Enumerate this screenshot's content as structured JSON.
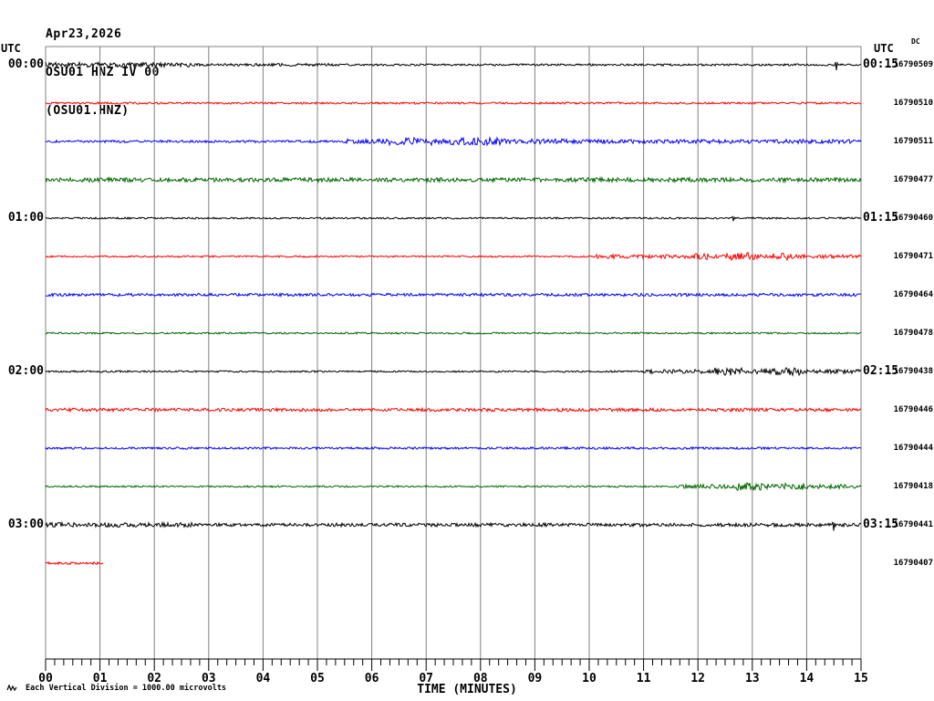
{
  "title": {
    "date": "Apr23,2026",
    "station": "OSU01 HNZ IV 00",
    "channel": "(OSU01.HNZ)"
  },
  "header": {
    "utc_left": "UTC",
    "utc_right": "UTC",
    "dc": "DC"
  },
  "x_axis": {
    "ticks": [
      "00",
      "01",
      "02",
      "03",
      "04",
      "05",
      "06",
      "07",
      "08",
      "09",
      "10",
      "11",
      "12",
      "13",
      "14",
      "15"
    ],
    "label": "TIME (MINUTES)"
  },
  "footnote": "Each Vertical Division = 1000.00 microvolts",
  "chart_data": {
    "type": "line",
    "subtype": "helicorder-seismogram",
    "title": "OSU01 HNZ IV 00 (OSU01.HNZ) Apr23,2026",
    "xlabel": "TIME (MINUTES)",
    "x_range": [
      0,
      15
    ],
    "minutes_per_row": 15,
    "grid": true,
    "grid_color": "#808080",
    "axis_color": "#000000",
    "vertical_division_microvolts": 1000.0,
    "trace_colors": [
      "#000000",
      "#ff0000",
      "#0000ff",
      "#006600"
    ],
    "rows": [
      {
        "left_label": "00:00",
        "right_label": "00:15",
        "dc": "16790509",
        "color": "#000000",
        "segments": [
          {
            "t0": 0,
            "t1": 1.1,
            "amp": 2.8
          },
          {
            "t0": 1.1,
            "t1": 2.7,
            "amp": 2.4
          },
          {
            "t0": 2.7,
            "t1": 5.4,
            "amp": 1.5
          },
          {
            "t0": 5.4,
            "t1": 15,
            "amp": 1.1
          }
        ],
        "spikes": [
          {
            "t": 14.55,
            "amp": 6
          }
        ]
      },
      {
        "dc": "16790510",
        "color": "#ff0000",
        "segments": [
          {
            "t0": 0,
            "t1": 15,
            "amp": 1.1
          }
        ],
        "spikes": []
      },
      {
        "dc": "16790511",
        "color": "#0000ff",
        "segments": [
          {
            "t0": 0,
            "t1": 5.5,
            "amp": 1.3
          },
          {
            "t0": 5.5,
            "t1": 6.2,
            "amp": 2.6
          },
          {
            "t0": 6.2,
            "t1": 7.1,
            "amp": 4
          },
          {
            "t0": 7.1,
            "t1": 7.4,
            "amp": 2.6
          },
          {
            "t0": 7.4,
            "t1": 8.4,
            "amp": 4
          },
          {
            "t0": 8.4,
            "t1": 9.6,
            "amp": 2.8
          },
          {
            "t0": 9.6,
            "t1": 15,
            "amp": 2.2
          }
        ],
        "spikes": []
      },
      {
        "dc": "16790477",
        "color": "#006600",
        "segments": [
          {
            "t0": 0,
            "t1": 15,
            "amp": 2.3
          }
        ],
        "spikes": []
      },
      {
        "left_label": "01:00",
        "right_label": "01:15",
        "dc": "16790460",
        "color": "#000000",
        "segments": [
          {
            "t0": 0,
            "t1": 15,
            "amp": 0.9
          }
        ],
        "spikes": [
          {
            "t": 12.65,
            "amp": 3.2
          }
        ]
      },
      {
        "dc": "16790471",
        "color": "#ff0000",
        "segments": [
          {
            "t0": 0,
            "t1": 10.1,
            "amp": 0.9
          },
          {
            "t0": 10.1,
            "t1": 11.9,
            "amp": 2.2
          },
          {
            "t0": 11.9,
            "t1": 12.25,
            "amp": 3.6
          },
          {
            "t0": 12.25,
            "t1": 12.5,
            "amp": 2.2
          },
          {
            "t0": 12.5,
            "t1": 13.05,
            "amp": 4.6
          },
          {
            "t0": 13.05,
            "t1": 13.35,
            "amp": 2.5
          },
          {
            "t0": 13.35,
            "t1": 13.75,
            "amp": 4
          },
          {
            "t0": 13.75,
            "t1": 15,
            "amp": 2
          }
        ],
        "spikes": []
      },
      {
        "dc": "16790464",
        "color": "#0000ff",
        "segments": [
          {
            "t0": 0,
            "t1": 15,
            "amp": 1.6
          }
        ],
        "spikes": []
      },
      {
        "dc": "16790478",
        "color": "#006600",
        "segments": [
          {
            "t0": 0,
            "t1": 15,
            "amp": 0.9
          }
        ],
        "spikes": []
      },
      {
        "left_label": "02:00",
        "right_label": "02:15",
        "dc": "16790438",
        "color": "#000000",
        "segments": [
          {
            "t0": 0,
            "t1": 11,
            "amp": 0.9
          },
          {
            "t0": 11,
            "t1": 12.3,
            "amp": 2.2
          },
          {
            "t0": 12.3,
            "t1": 12.85,
            "amp": 4.6
          },
          {
            "t0": 12.85,
            "t1": 13.1,
            "amp": 2.5
          },
          {
            "t0": 13.1,
            "t1": 13.9,
            "amp": 4.2
          },
          {
            "t0": 13.9,
            "t1": 15,
            "amp": 2.2
          }
        ],
        "spikes": []
      },
      {
        "dc": "16790446",
        "color": "#ff0000",
        "segments": [
          {
            "t0": 0,
            "t1": 15,
            "amp": 1.8
          }
        ],
        "spikes": []
      },
      {
        "dc": "16790444",
        "color": "#0000ff",
        "segments": [
          {
            "t0": 0,
            "t1": 15,
            "amp": 1.2
          }
        ],
        "spikes": []
      },
      {
        "dc": "16790418",
        "color": "#006600",
        "segments": [
          {
            "t0": 0,
            "t1": 11.6,
            "amp": 0.9
          },
          {
            "t0": 11.6,
            "t1": 12.7,
            "amp": 2.2
          },
          {
            "t0": 12.7,
            "t1": 13.3,
            "amp": 4.2
          },
          {
            "t0": 13.3,
            "t1": 13.6,
            "amp": 2.6
          },
          {
            "t0": 13.6,
            "t1": 13.95,
            "amp": 3.6
          },
          {
            "t0": 13.95,
            "t1": 15,
            "amp": 2.4
          }
        ],
        "spikes": []
      },
      {
        "left_label": "03:00",
        "right_label": "03:15",
        "dc": "16790441",
        "color": "#000000",
        "segments": [
          {
            "t0": 0,
            "t1": 2.7,
            "amp": 2.5
          },
          {
            "t0": 2.7,
            "t1": 15,
            "amp": 1.9
          }
        ],
        "spikes": [
          {
            "t": 14.5,
            "amp": 6.5
          }
        ]
      },
      {
        "dc": "16790407",
        "color": "#ff0000",
        "segments": [
          {
            "t0": 0,
            "t1": 1.05,
            "amp": 1.3
          }
        ],
        "spikes": []
      }
    ]
  }
}
